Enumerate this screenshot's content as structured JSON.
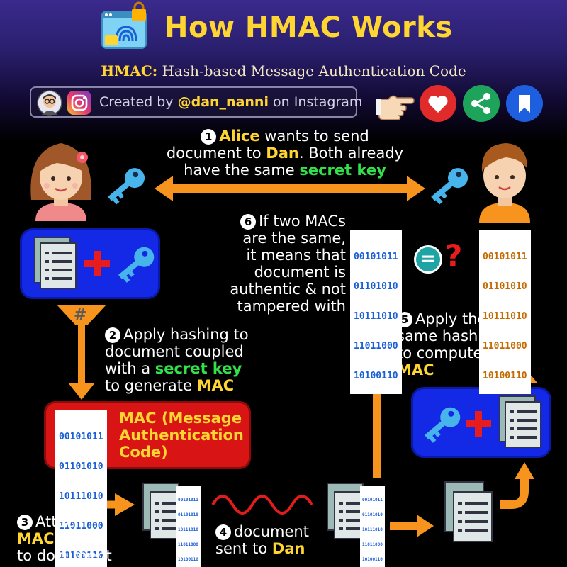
{
  "header": {
    "title": "How HMAC Works",
    "subtitle_bold": "HMAC:",
    "subtitle_rest": "Hash-based Message Authentication Code",
    "credit_prefix": "Created by",
    "credit_handle": "@dan_nanni",
    "credit_suffix": "on Instagram"
  },
  "icons": {
    "header_icon": "fingerprint-document-icon",
    "avatar": "author-avatar-icon",
    "instagram": "instagram-icon",
    "pointer": "pointing-hand-icon",
    "like": "heart-icon",
    "share": "share-icon",
    "bookmark": "bookmark-icon"
  },
  "colors": {
    "accent_yellow": "#ffd531",
    "accent_green": "#32e04a",
    "arrow_orange": "#f7941d",
    "box_blue": "#1429e6",
    "box_red": "#d81414",
    "binary_blue": "#1a5fd6",
    "binary_orange": "#c46a00"
  },
  "steps": {
    "s1": {
      "num": "1",
      "l1_name": "Alice",
      "l1_rest": "wants to send",
      "l2_a": "document to",
      "l2_name": "Dan",
      "l2_b": ". Both already",
      "l3_a": "have the same",
      "l3_key": "secret key"
    },
    "s2": {
      "num": "2",
      "l1": "Apply hashing to",
      "l2": "document coupled",
      "l3_a": "with a",
      "l3_key": "secret key",
      "l4_a": "to generate",
      "l4_mac": "MAC"
    },
    "s3": {
      "num": "3",
      "l1": "Attach",
      "l2_mac": "MAC",
      "l3": "to document"
    },
    "s4": {
      "num": "4",
      "l1": "document",
      "l2_a": "sent to",
      "l2_name": "Dan"
    },
    "s5": {
      "num": "5",
      "l1": "Apply the",
      "l2": "same hashing",
      "l3": "to compute",
      "l4_mac": "MAC"
    },
    "s6": {
      "num": "6",
      "l1": "If two MACs",
      "l2": "are the same,",
      "l3": "it means that",
      "l4": "document is",
      "l5": "authentic & not",
      "l6": "tampered with"
    }
  },
  "mac_box": {
    "line1_a": "MAC",
    "line1_b": "(Message",
    "line2": "Authentication",
    "line3": "Code)"
  },
  "binary": {
    "row1": "00101011",
    "row2": "01101010",
    "row3": "10111010",
    "row4": "11011000",
    "row5": "10100110"
  },
  "symbols": {
    "hash": "#",
    "equals": "=",
    "question": "?"
  }
}
